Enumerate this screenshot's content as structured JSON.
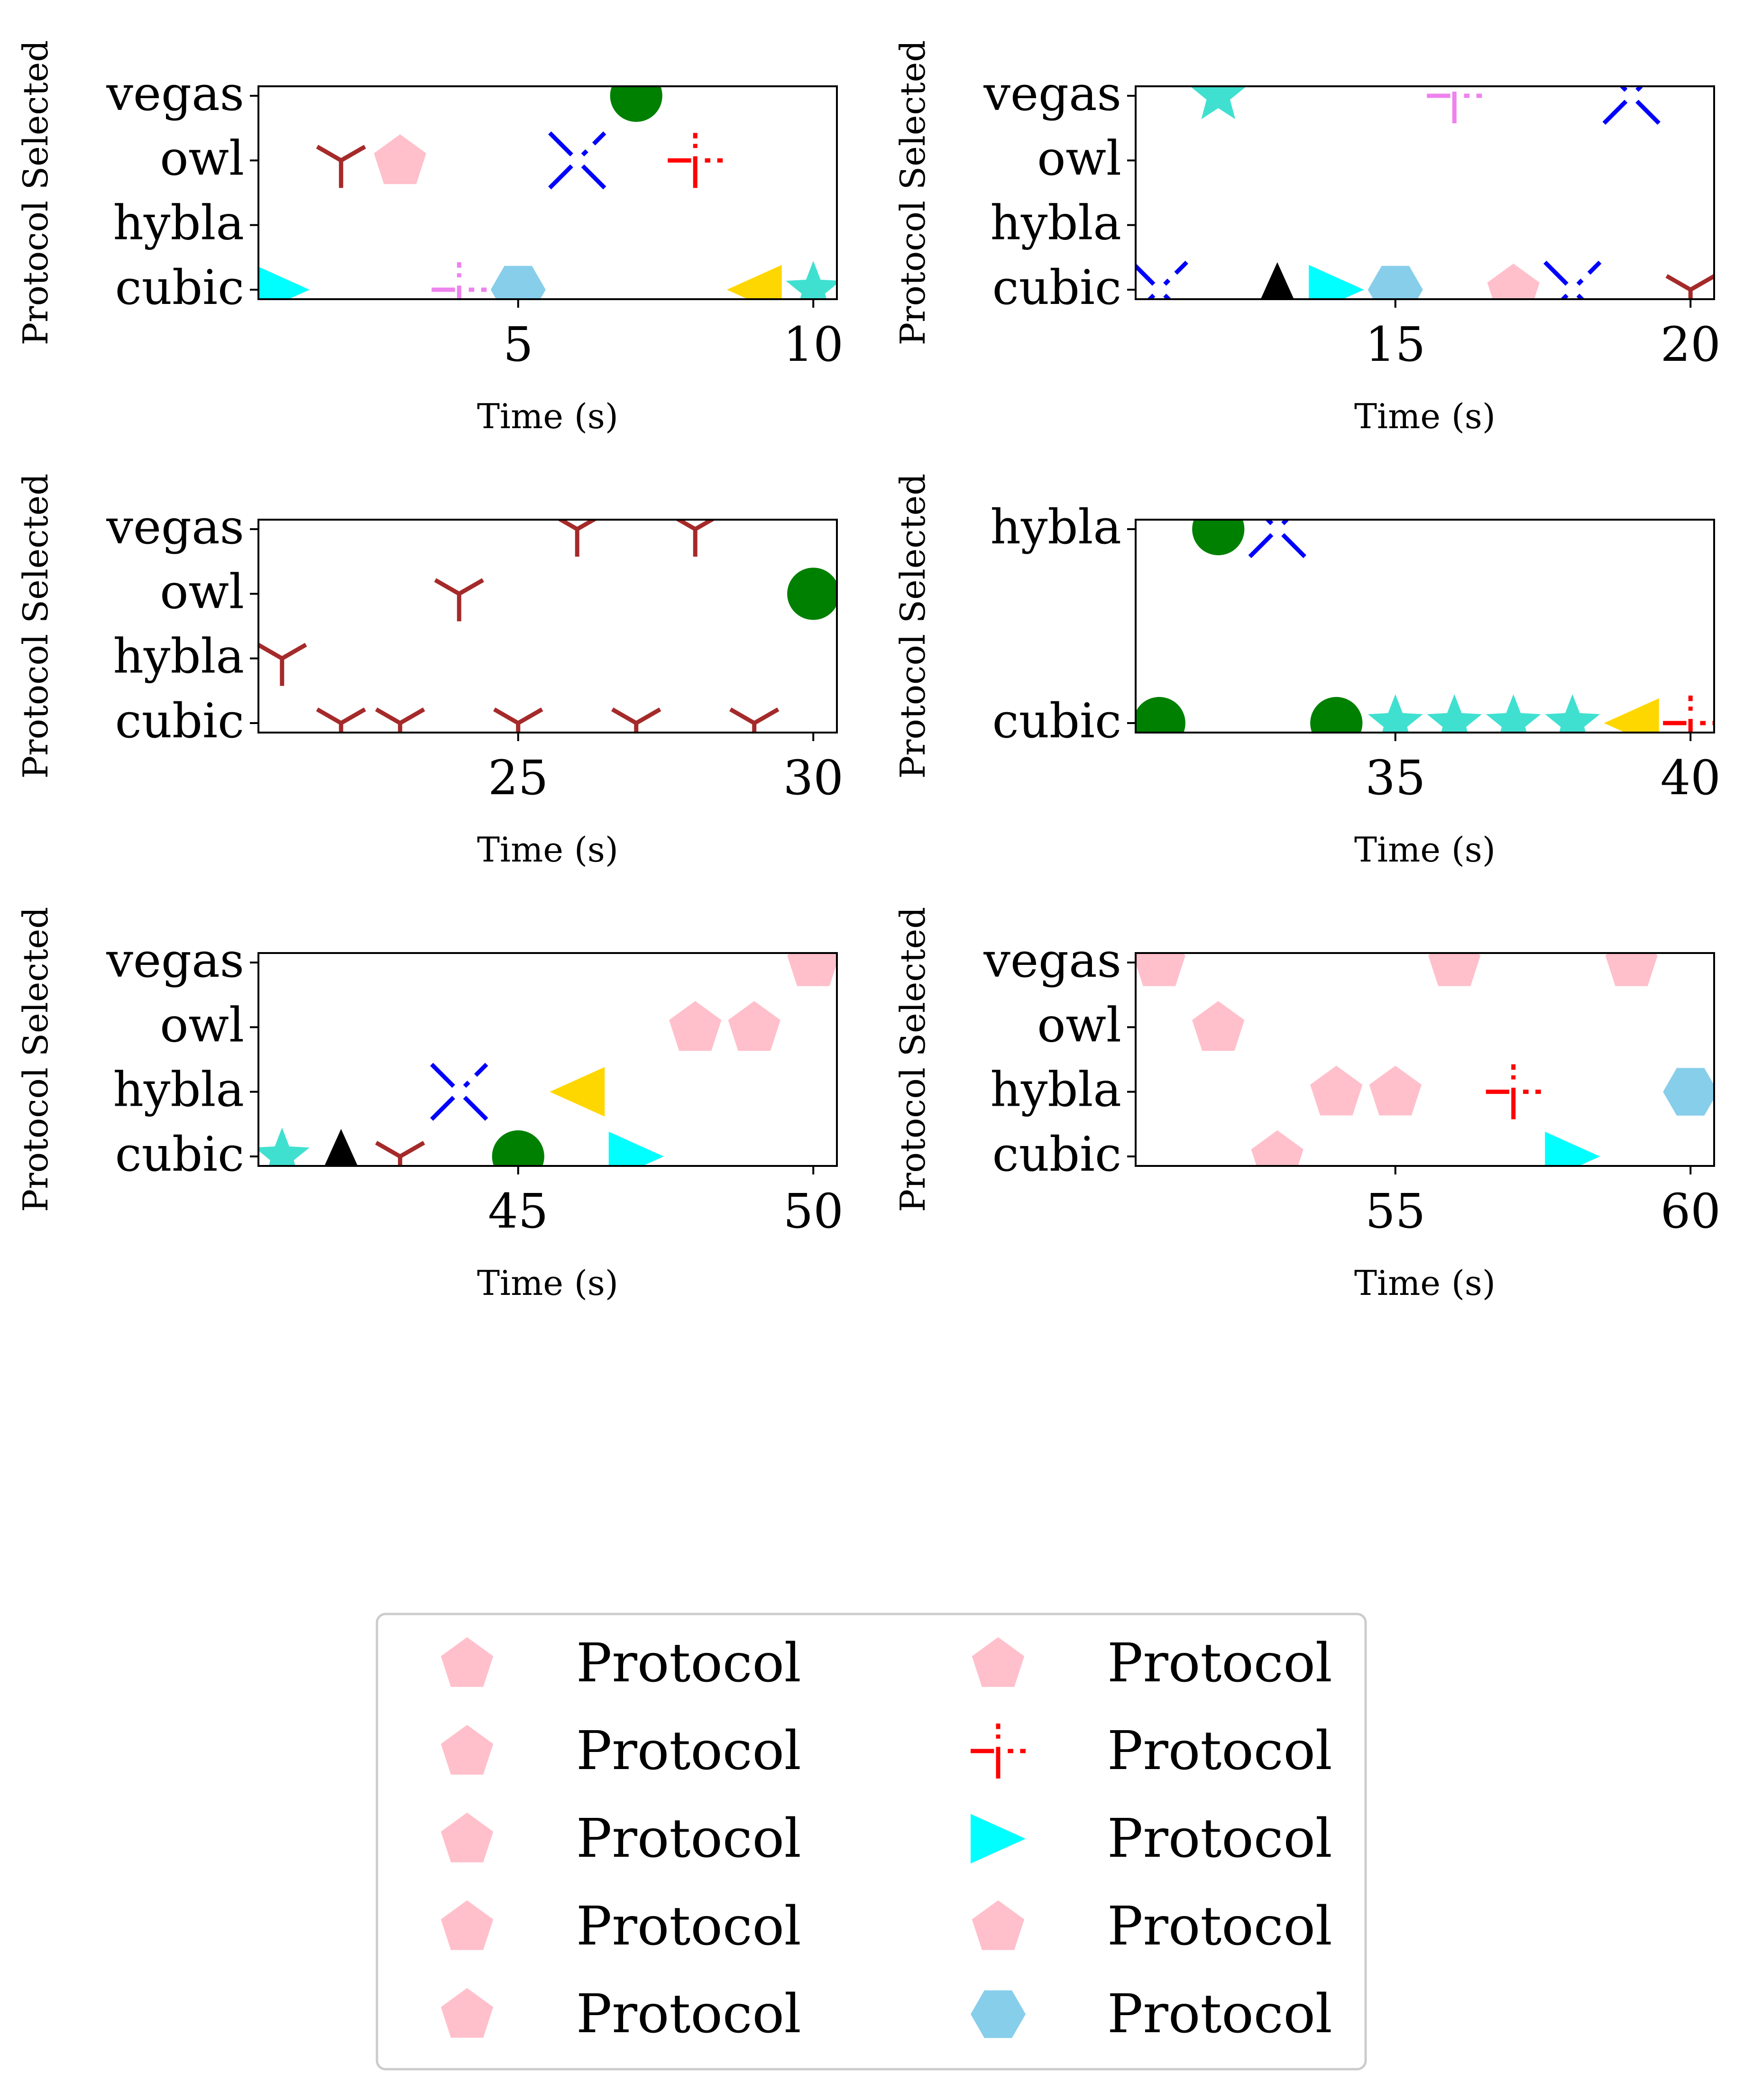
{
  "colors": {
    "pink": "#FFC0CB",
    "brown": "#A52A2A",
    "blue": "#0000FF",
    "green": "#008000",
    "red": "#FF0000",
    "cyan": "#00FFFF",
    "violet": "#EE82EE",
    "skyblue": "#87CEEB",
    "gold": "#FFD700",
    "turquoise": "#40E0D0",
    "black": "#000000"
  },
  "chart_data": [
    {
      "type": "scatter",
      "xlabel": "Time (s)",
      "ylabel": "Protocol Selected",
      "xlim": [
        0.6,
        10.4
      ],
      "xticks": [
        5,
        10
      ],
      "yticks": [
        "cubic",
        "hybla",
        "owl",
        "vegas"
      ],
      "points": [
        {
          "x": 1,
          "y": "cubic",
          "marker": "triangle-right",
          "color": "cyan"
        },
        {
          "x": 2,
          "y": "owl",
          "marker": "tri-down",
          "color": "brown"
        },
        {
          "x": 3,
          "y": "owl",
          "marker": "pentagon",
          "color": "pink"
        },
        {
          "x": 4,
          "y": "cubic",
          "marker": "dagger",
          "color": "violet"
        },
        {
          "x": 5,
          "y": "cubic",
          "marker": "hexagon",
          "color": "skyblue"
        },
        {
          "x": 6,
          "y": "owl",
          "marker": "x-dotted",
          "color": "blue"
        },
        {
          "x": 7,
          "y": "vegas",
          "marker": "circle",
          "color": "green"
        },
        {
          "x": 8,
          "y": "owl",
          "marker": "dagger",
          "color": "red"
        },
        {
          "x": 9,
          "y": "cubic",
          "marker": "triangle-left",
          "color": "gold"
        },
        {
          "x": 10,
          "y": "cubic",
          "marker": "star",
          "color": "turquoise"
        }
      ]
    },
    {
      "type": "scatter",
      "xlabel": "Time (s)",
      "ylabel": "Protocol Selected",
      "xlim": [
        10.6,
        20.4
      ],
      "xticks": [
        15,
        20
      ],
      "yticks": [
        "cubic",
        "hybla",
        "owl",
        "vegas"
      ],
      "points": [
        {
          "x": 11,
          "y": "cubic",
          "marker": "x-dotted",
          "color": "blue"
        },
        {
          "x": 12,
          "y": "vegas",
          "marker": "star",
          "color": "turquoise"
        },
        {
          "x": 13,
          "y": "cubic",
          "marker": "triangle-up",
          "color": "black"
        },
        {
          "x": 14,
          "y": "cubic",
          "marker": "triangle-right",
          "color": "cyan"
        },
        {
          "x": 15,
          "y": "cubic",
          "marker": "hexagon",
          "color": "skyblue"
        },
        {
          "x": 16,
          "y": "vegas",
          "marker": "dagger",
          "color": "violet"
        },
        {
          "x": 17,
          "y": "cubic",
          "marker": "pentagon",
          "color": "pink"
        },
        {
          "x": 18,
          "y": "cubic",
          "marker": "x-dotted",
          "color": "blue"
        },
        {
          "x": 19,
          "y": "vegas",
          "marker": "x-dotted",
          "color": "blue"
        },
        {
          "x": 20,
          "y": "cubic",
          "marker": "tri-down",
          "color": "brown"
        }
      ]
    },
    {
      "type": "scatter",
      "xlabel": "Time (s)",
      "ylabel": "Protocol Selected",
      "xlim": [
        20.6,
        30.4
      ],
      "xticks": [
        25,
        30
      ],
      "yticks": [
        "cubic",
        "hybla",
        "owl",
        "vegas"
      ],
      "points": [
        {
          "x": 21,
          "y": "hybla",
          "marker": "tri-down",
          "color": "brown"
        },
        {
          "x": 22,
          "y": "cubic",
          "marker": "tri-down",
          "color": "brown"
        },
        {
          "x": 23,
          "y": "cubic",
          "marker": "tri-down",
          "color": "brown"
        },
        {
          "x": 24,
          "y": "owl",
          "marker": "tri-down",
          "color": "brown"
        },
        {
          "x": 25,
          "y": "cubic",
          "marker": "tri-down",
          "color": "brown"
        },
        {
          "x": 26,
          "y": "vegas",
          "marker": "tri-down",
          "color": "brown"
        },
        {
          "x": 27,
          "y": "cubic",
          "marker": "tri-down",
          "color": "brown"
        },
        {
          "x": 28,
          "y": "vegas",
          "marker": "tri-down",
          "color": "brown"
        },
        {
          "x": 29,
          "y": "cubic",
          "marker": "tri-down",
          "color": "brown"
        },
        {
          "x": 30,
          "y": "owl",
          "marker": "circle",
          "color": "green"
        }
      ]
    },
    {
      "type": "scatter",
      "xlabel": "Time (s)",
      "ylabel": "Protocol Selected",
      "xlim": [
        30.6,
        40.4
      ],
      "xticks": [
        35,
        40
      ],
      "yticks": [
        "cubic",
        "hybla"
      ],
      "points": [
        {
          "x": 31,
          "y": "cubic",
          "marker": "circle",
          "color": "green"
        },
        {
          "x": 32,
          "y": "hybla",
          "marker": "circle",
          "color": "green"
        },
        {
          "x": 33,
          "y": "hybla",
          "marker": "x-dotted",
          "color": "blue"
        },
        {
          "x": 34,
          "y": "cubic",
          "marker": "circle",
          "color": "green"
        },
        {
          "x": 35,
          "y": "cubic",
          "marker": "star",
          "color": "turquoise"
        },
        {
          "x": 36,
          "y": "cubic",
          "marker": "star",
          "color": "turquoise"
        },
        {
          "x": 37,
          "y": "cubic",
          "marker": "star",
          "color": "turquoise"
        },
        {
          "x": 38,
          "y": "cubic",
          "marker": "star",
          "color": "turquoise"
        },
        {
          "x": 39,
          "y": "cubic",
          "marker": "triangle-left",
          "color": "gold"
        },
        {
          "x": 40,
          "y": "cubic",
          "marker": "dagger",
          "color": "red"
        }
      ]
    },
    {
      "type": "scatter",
      "xlabel": "Time (s)",
      "ylabel": "Protocol Selected",
      "xlim": [
        40.6,
        50.4
      ],
      "xticks": [
        45,
        50
      ],
      "yticks": [
        "cubic",
        "hybla",
        "owl",
        "vegas"
      ],
      "points": [
        {
          "x": 41,
          "y": "cubic",
          "marker": "star",
          "color": "turquoise"
        },
        {
          "x": 42,
          "y": "cubic",
          "marker": "triangle-up",
          "color": "black"
        },
        {
          "x": 43,
          "y": "cubic",
          "marker": "tri-down",
          "color": "brown"
        },
        {
          "x": 44,
          "y": "hybla",
          "marker": "x-dotted",
          "color": "blue"
        },
        {
          "x": 45,
          "y": "cubic",
          "marker": "circle",
          "color": "green"
        },
        {
          "x": 46,
          "y": "hybla",
          "marker": "triangle-left",
          "color": "gold"
        },
        {
          "x": 47,
          "y": "cubic",
          "marker": "triangle-right",
          "color": "cyan"
        },
        {
          "x": 48,
          "y": "owl",
          "marker": "pentagon",
          "color": "pink"
        },
        {
          "x": 49,
          "y": "owl",
          "marker": "pentagon",
          "color": "pink"
        },
        {
          "x": 50,
          "y": "vegas",
          "marker": "pentagon",
          "color": "pink"
        }
      ]
    },
    {
      "type": "scatter",
      "xlabel": "Time (s)",
      "ylabel": "Protocol Selected",
      "xlim": [
        50.6,
        60.4
      ],
      "xticks": [
        55,
        60
      ],
      "yticks": [
        "cubic",
        "hybla",
        "owl",
        "vegas"
      ],
      "points": [
        {
          "x": 51,
          "y": "vegas",
          "marker": "pentagon",
          "color": "pink"
        },
        {
          "x": 52,
          "y": "owl",
          "marker": "pentagon",
          "color": "pink"
        },
        {
          "x": 53,
          "y": "cubic",
          "marker": "pentagon",
          "color": "pink"
        },
        {
          "x": 54,
          "y": "hybla",
          "marker": "pentagon",
          "color": "pink"
        },
        {
          "x": 55,
          "y": "hybla",
          "marker": "pentagon",
          "color": "pink"
        },
        {
          "x": 56,
          "y": "vegas",
          "marker": "pentagon",
          "color": "pink"
        },
        {
          "x": 57,
          "y": "hybla",
          "marker": "dagger",
          "color": "red"
        },
        {
          "x": 58,
          "y": "cubic",
          "marker": "triangle-right",
          "color": "cyan"
        },
        {
          "x": 59,
          "y": "vegas",
          "marker": "pentagon",
          "color": "pink"
        },
        {
          "x": 60,
          "y": "hybla",
          "marker": "hexagon",
          "color": "skyblue"
        }
      ]
    }
  ],
  "legend": {
    "columns": 2,
    "entries": [
      {
        "label": "Protocol",
        "marker": "pentagon",
        "color": "pink"
      },
      {
        "label": "Protocol",
        "marker": "pentagon",
        "color": "pink"
      },
      {
        "label": "Protocol",
        "marker": "pentagon",
        "color": "pink"
      },
      {
        "label": "Protocol",
        "marker": "pentagon",
        "color": "pink"
      },
      {
        "label": "Protocol",
        "marker": "pentagon",
        "color": "pink"
      },
      {
        "label": "Protocol",
        "marker": "pentagon",
        "color": "pink"
      },
      {
        "label": "Protocol",
        "marker": "dagger",
        "color": "red"
      },
      {
        "label": "Protocol",
        "marker": "triangle-right",
        "color": "cyan"
      },
      {
        "label": "Protocol",
        "marker": "pentagon",
        "color": "pink"
      },
      {
        "label": "Protocol",
        "marker": "hexagon",
        "color": "skyblue"
      }
    ]
  }
}
